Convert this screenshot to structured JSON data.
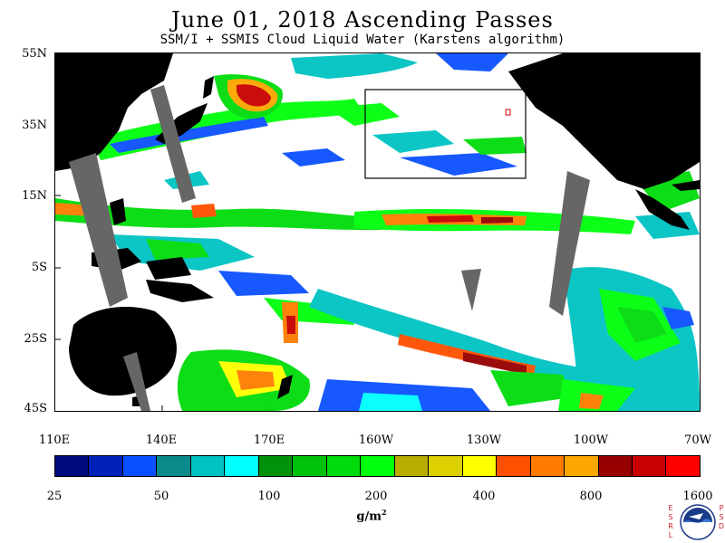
{
  "title": "June 01, 2018  Ascending Passes",
  "subtitle": "SSM/I + SSMIS Cloud Liquid Water (Karstens algorithm)",
  "map": {
    "lat_labels": [
      "55N",
      "35N",
      "15N",
      "5S",
      "25S",
      "45S"
    ],
    "lon_labels": [
      "110E",
      "140E",
      "170E",
      "160W",
      "130W",
      "100W",
      "70W"
    ],
    "land_color": "#000000",
    "nodata_color": "#666666",
    "box_color": "#000000"
  },
  "colorbar": {
    "colors": [
      "#000b7e",
      "#0022b8",
      "#0b50ff",
      "#0a8a8a",
      "#00c2c2",
      "#00ffff",
      "#00920b",
      "#00c20b",
      "#00dc0b",
      "#00ff0b",
      "#b8ad00",
      "#dcd000",
      "#ffff00",
      "#ff5000",
      "#ff7c00",
      "#ffa600",
      "#960000",
      "#c80000",
      "#ff0000"
    ],
    "tick_labels": [
      "25",
      "50",
      "100",
      "200",
      "400",
      "800",
      "1600"
    ],
    "units_main": "g/m",
    "units_sup": "2"
  },
  "logo": {
    "left_letters": [
      "E",
      "S",
      "R",
      "L"
    ],
    "right_letters": [
      "P",
      "S",
      "D"
    ],
    "text": "NOAA"
  }
}
